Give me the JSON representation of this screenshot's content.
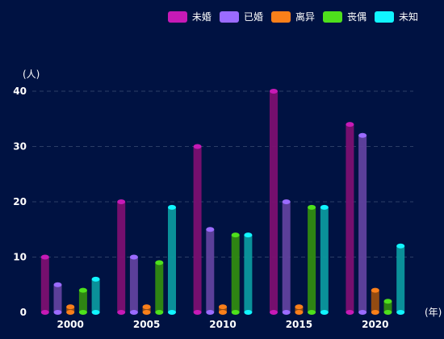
{
  "chart_data": {
    "type": "bar",
    "categories": [
      "2000",
      "2005",
      "2010",
      "2015",
      "2020"
    ],
    "series": [
      {
        "name": "未婚",
        "color": "#c71ab6",
        "values": [
          10,
          20,
          30,
          40,
          34
        ]
      },
      {
        "name": "已婚",
        "color": "#9b6bff",
        "values": [
          5,
          10,
          15,
          20,
          32
        ]
      },
      {
        "name": "离异",
        "color": "#fa7f1a",
        "values": [
          1,
          1,
          1,
          1,
          4
        ]
      },
      {
        "name": "丧偶",
        "color": "#4ee01c",
        "values": [
          4,
          9,
          14,
          19,
          2
        ]
      },
      {
        "name": "未知",
        "color": "#11f5ff",
        "values": [
          6,
          19,
          14,
          19,
          12
        ]
      }
    ],
    "ylabel": "(人)",
    "xlabel": "(年)",
    "ylim": [
      0,
      40
    ],
    "yticks": [
      0,
      10,
      20,
      30,
      40
    ],
    "grid": true,
    "legend_position": "top-right"
  }
}
